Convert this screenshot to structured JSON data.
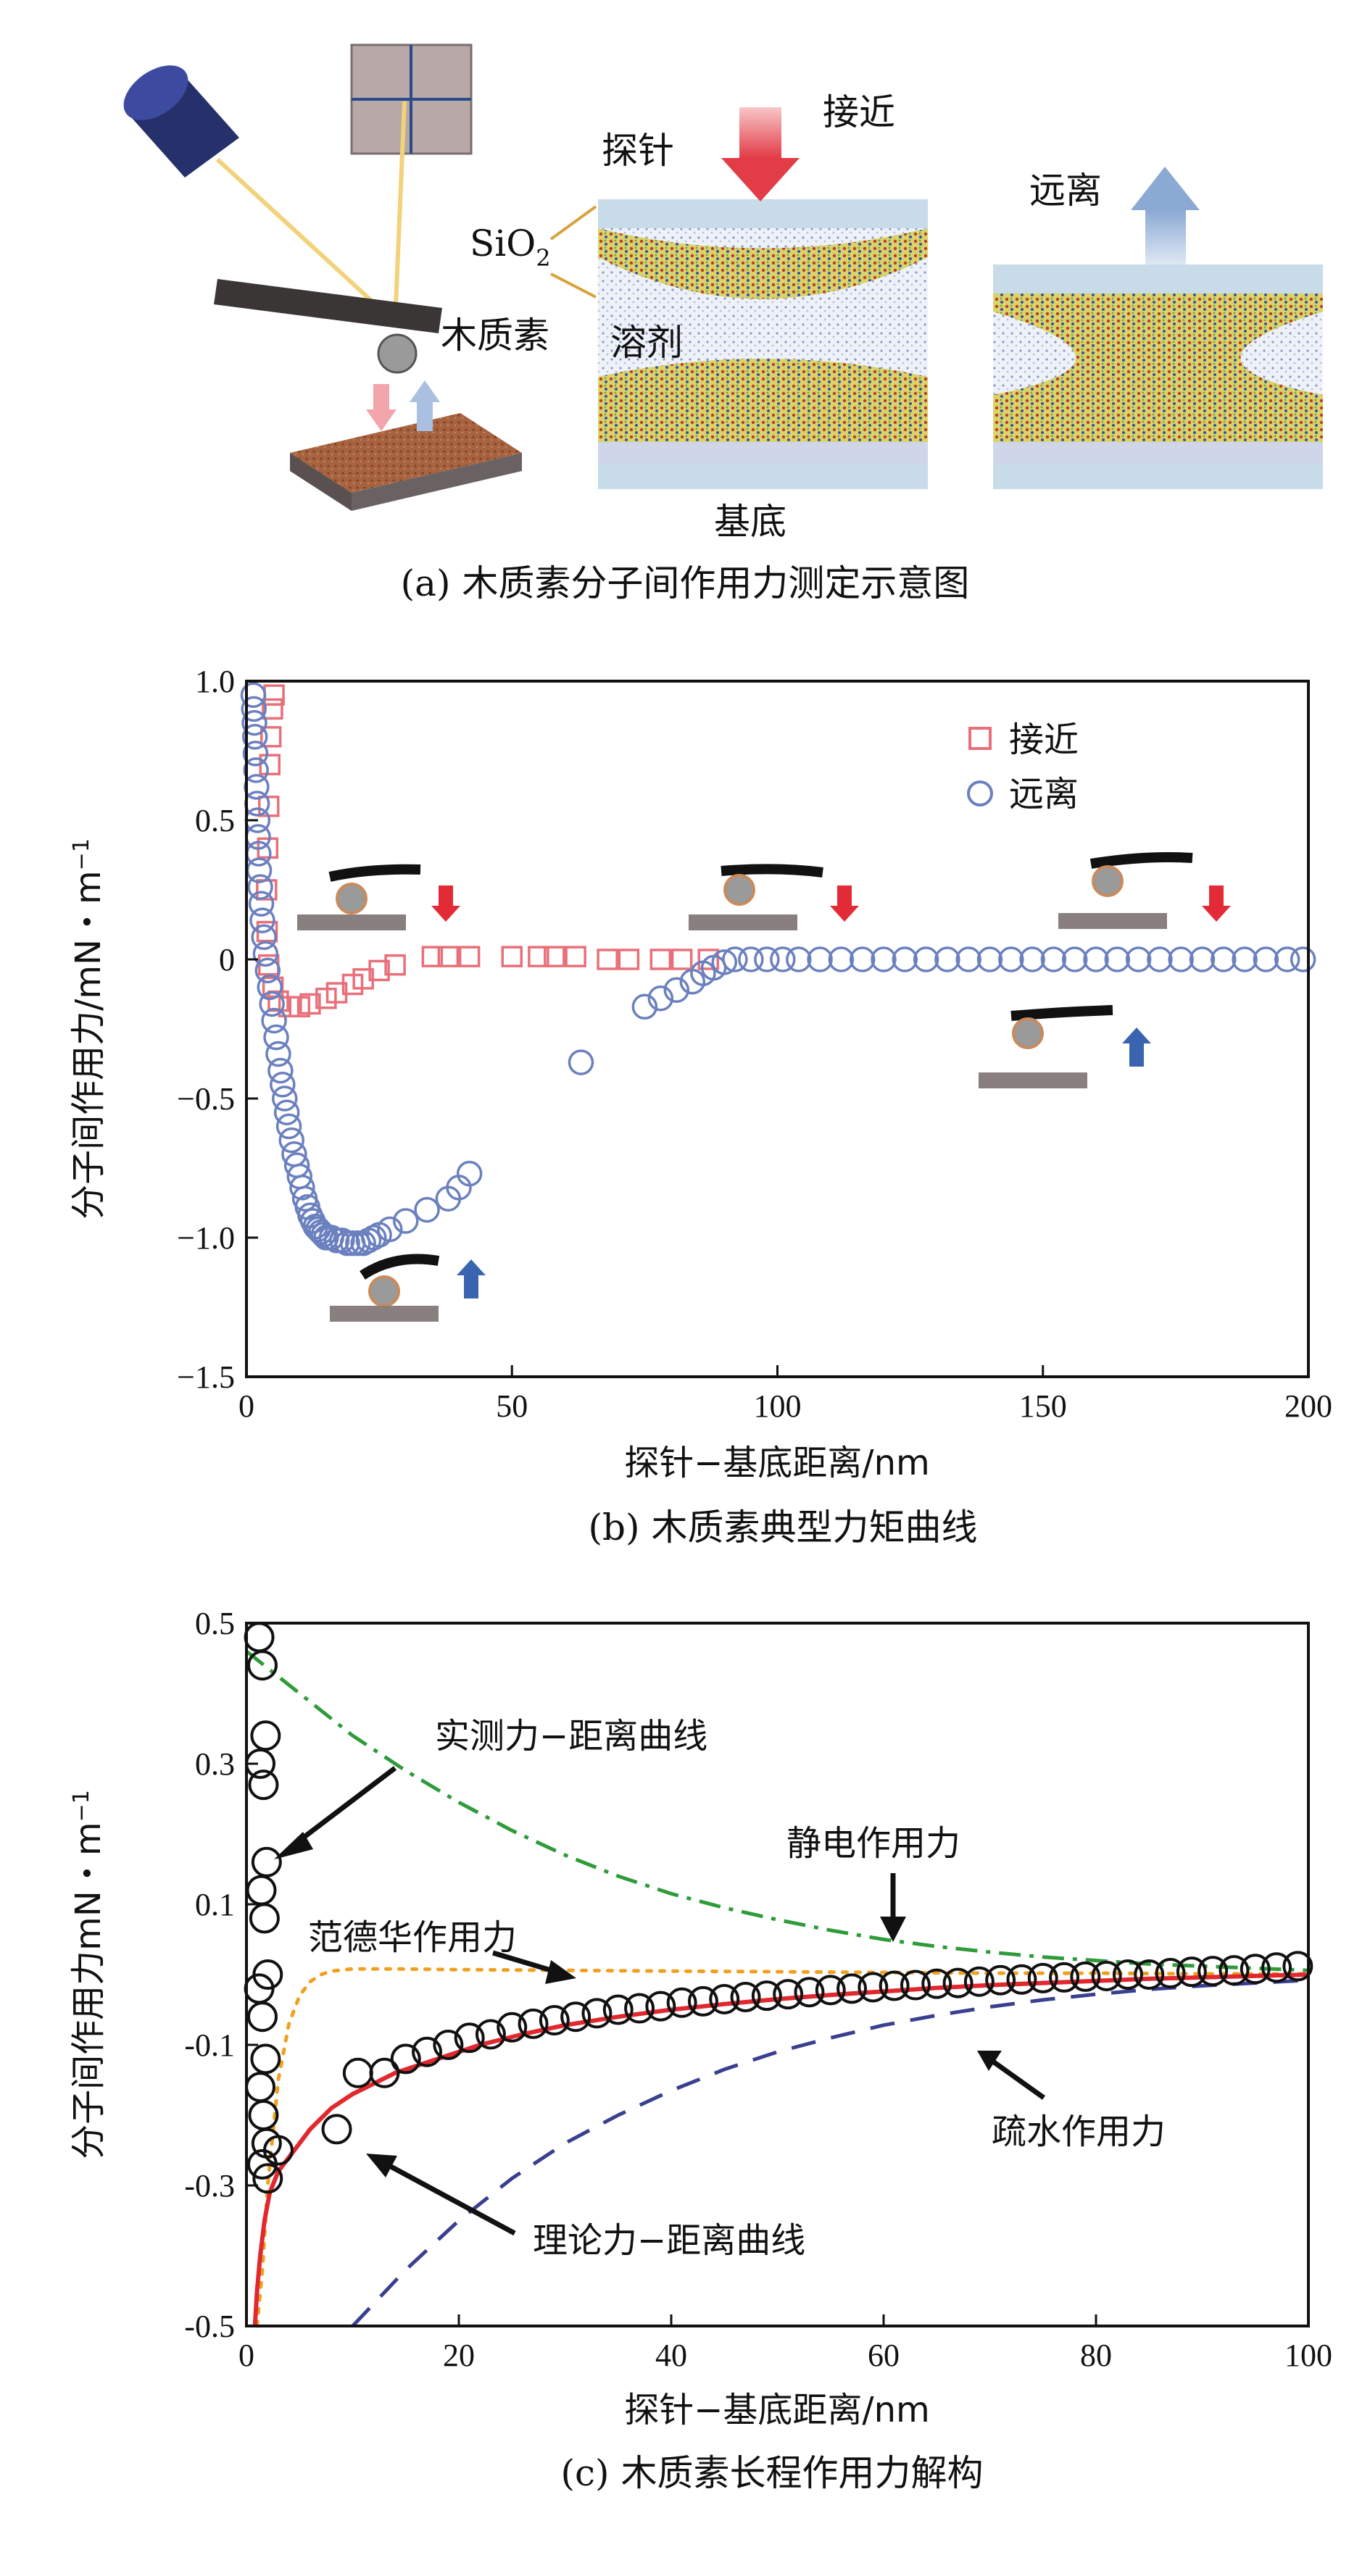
{
  "panel_a": {
    "caption": "(a) 木质素分子间作用力测定示意图",
    "labels": {
      "probe": "探针",
      "approach": "接近",
      "retract": "远离",
      "sio2": "SiO",
      "sio2_sub": "2",
      "lignin": "木质素",
      "solvent": "溶剂",
      "substrate": "基底"
    },
    "colors": {
      "approach_arrow": "#e9646c",
      "retract_arrow": "#9fb7d9",
      "laser": "#f2d27a",
      "substrate": "#9a5a3a"
    }
  },
  "chart_data": [
    {
      "type": "scatter",
      "caption": "(b) 木质素典型力矩曲线",
      "xlabel": "探针−基底距离/nm",
      "ylabel": "分子间作用力/mN・m",
      "ylabel_sup": "−1",
      "xlim": [
        0,
        200
      ],
      "ylim": [
        -1.5,
        1.0
      ],
      "xticks": [
        0,
        50,
        100,
        150,
        200
      ],
      "xtick_labels": [
        "0",
        "50",
        "100",
        "150",
        "200"
      ],
      "yticks": [
        1.0,
        0.5,
        0,
        -0.5,
        -1.0,
        -1.5
      ],
      "ytick_labels": [
        "1.0",
        "0.5",
        "0",
        "−0.5",
        "−1.0",
        "−1.5"
      ],
      "legend_position": "top-right",
      "series": [
        {
          "name": "接近",
          "marker": "square",
          "color": "#e8707a",
          "x": [
            5.2,
            4.9,
            4.6,
            4.4,
            4.2,
            4.0,
            3.8,
            3.9,
            4.2,
            5,
            6,
            8,
            10,
            12,
            15,
            17,
            20,
            22,
            25,
            28,
            35,
            38,
            42,
            50,
            55,
            58,
            62,
            68,
            72,
            78,
            82,
            87
          ],
          "y": [
            0.95,
            0.9,
            0.8,
            0.7,
            0.55,
            0.4,
            0.25,
            0.1,
            -0.02,
            -0.1,
            -0.15,
            -0.17,
            -0.17,
            -0.16,
            -0.14,
            -0.12,
            -0.09,
            -0.07,
            -0.04,
            -0.02,
            0.01,
            0.01,
            0.01,
            0.01,
            0.01,
            0.01,
            0.01,
            0.0,
            0.0,
            0.0,
            0.0,
            0.0
          ]
        },
        {
          "name": "远离",
          "marker": "circle",
          "color": "#6b80bf",
          "x": [
            1.3,
            1.4,
            1.5,
            1.6,
            1.7,
            1.8,
            1.9,
            2.0,
            2.1,
            2.2,
            2.3,
            2.4,
            2.6,
            2.8,
            3.0,
            3.3,
            3.6,
            4.0,
            4.4,
            4.8,
            5.2,
            5.6,
            6.0,
            6.4,
            6.8,
            7.2,
            7.6,
            8.0,
            8.5,
            9.0,
            9.5,
            10.0,
            10.5,
            11.0,
            11.5,
            12.0,
            12.5,
            13.0,
            13.5,
            14.0,
            14.5,
            15.0,
            16,
            17,
            18,
            19,
            20,
            21,
            22,
            23,
            24,
            25,
            27,
            30,
            34,
            38,
            40,
            42,
            63,
            75,
            78,
            81,
            84,
            86,
            88,
            90,
            92,
            95,
            98,
            101,
            104,
            108,
            112,
            116,
            120,
            124,
            128,
            132,
            136,
            140,
            144,
            148,
            152,
            156,
            160,
            164,
            168,
            172,
            176,
            180,
            184,
            188,
            192,
            196,
            199
          ],
          "y": [
            0.95,
            0.9,
            0.85,
            0.8,
            0.74,
            0.68,
            0.62,
            0.56,
            0.5,
            0.44,
            0.38,
            0.32,
            0.26,
            0.2,
            0.14,
            0.08,
            0.02,
            -0.04,
            -0.1,
            -0.16,
            -0.22,
            -0.28,
            -0.34,
            -0.4,
            -0.45,
            -0.5,
            -0.55,
            -0.6,
            -0.65,
            -0.7,
            -0.74,
            -0.78,
            -0.82,
            -0.86,
            -0.89,
            -0.92,
            -0.94,
            -0.96,
            -0.97,
            -0.98,
            -0.99,
            -1.0,
            -1.0,
            -1.01,
            -1.01,
            -1.02,
            -1.02,
            -1.02,
            -1.02,
            -1.01,
            -1.0,
            -0.99,
            -0.97,
            -0.94,
            -0.9,
            -0.86,
            -0.82,
            -0.77,
            -0.37,
            -0.17,
            -0.14,
            -0.11,
            -0.08,
            -0.05,
            -0.03,
            -0.01,
            0.0,
            0.0,
            0.0,
            0.0,
            0.0,
            0.0,
            0.0,
            0.0,
            0.0,
            0.0,
            0.0,
            0.0,
            0.0,
            0.0,
            0.0,
            0.0,
            0.0,
            0.0,
            0.0,
            0.0,
            0.0,
            0.0,
            0.0,
            0.0,
            0.0,
            0.0,
            0.0,
            0.0,
            0.0
          ]
        }
      ]
    },
    {
      "type": "line",
      "caption": "(c) 木质素长程作用力解构",
      "xlabel": "探针−基底距离/nm",
      "ylabel": "分子间作用力mN・m",
      "ylabel_sup": "−1",
      "xlim": [
        0,
        100
      ],
      "ylim": [
        -0.5,
        0.5
      ],
      "xticks": [
        0,
        20,
        40,
        60,
        80,
        100
      ],
      "xtick_labels": [
        "0",
        "20",
        "40",
        "60",
        "80",
        "100"
      ],
      "yticks": [
        0.5,
        0.3,
        0.1,
        -0.1,
        -0.3,
        -0.5
      ],
      "ytick_labels": [
        "0.5",
        "0.3",
        "0.1",
        "-0.1",
        "-0.3",
        "-0.5"
      ],
      "annotations": [
        "实测力−距离曲线",
        "静电作用力",
        "范德华作用力",
        "疏水作用力",
        "理论力−距离曲线"
      ],
      "series": [
        {
          "name": "实测力−距离曲线",
          "style": "open-circle",
          "color": "#111111",
          "x": [
            1.2,
            1.5,
            1.8,
            1.3,
            1.6,
            1.9,
            1.4,
            1.7,
            2.0,
            1.2,
            1.5,
            1.8,
            1.3,
            1.6,
            1.9,
            1.5,
            2.0,
            3.0,
            8.5,
            10.5,
            13,
            15,
            17,
            19,
            21,
            23,
            25,
            27,
            29,
            31,
            33,
            35,
            37,
            39,
            41,
            43,
            45,
            47,
            49,
            51,
            53,
            55,
            57,
            59,
            61,
            63,
            65,
            67,
            69,
            71,
            73,
            75,
            77,
            79,
            81,
            83,
            85,
            87,
            89,
            91,
            93,
            95,
            97,
            99
          ],
          "y": [
            0.48,
            0.44,
            0.34,
            0.3,
            0.27,
            0.16,
            0.12,
            0.08,
            0.0,
            -0.02,
            -0.06,
            -0.12,
            -0.16,
            -0.2,
            -0.24,
            -0.27,
            -0.29,
            -0.25,
            -0.22,
            -0.14,
            -0.14,
            -0.12,
            -0.11,
            -0.1,
            -0.09,
            -0.085,
            -0.075,
            -0.07,
            -0.065,
            -0.06,
            -0.055,
            -0.05,
            -0.048,
            -0.045,
            -0.04,
            -0.038,
            -0.035,
            -0.032,
            -0.03,
            -0.028,
            -0.025,
            -0.022,
            -0.02,
            -0.018,
            -0.016,
            -0.015,
            -0.013,
            -0.012,
            -0.01,
            -0.008,
            -0.007,
            -0.005,
            -0.004,
            -0.003,
            -0.002,
            0.0,
            0.0,
            0.002,
            0.004,
            0.005,
            0.006,
            0.008,
            0.01,
            0.012
          ]
        },
        {
          "name": "理论力−距离曲线",
          "style": "solid",
          "color": "#e0282e",
          "x": [
            0.8,
            1,
            1.3,
            1.7,
            2.2,
            3,
            4,
            5,
            6,
            8,
            10,
            14,
            18,
            22,
            26,
            30,
            35,
            40,
            45,
            50,
            55,
            60,
            65,
            70,
            75,
            80,
            85,
            90,
            95,
            100
          ],
          "y": [
            -0.5,
            -0.45,
            -0.4,
            -0.35,
            -0.31,
            -0.28,
            -0.26,
            -0.24,
            -0.22,
            -0.19,
            -0.17,
            -0.14,
            -0.12,
            -0.1,
            -0.085,
            -0.072,
            -0.06,
            -0.05,
            -0.042,
            -0.035,
            -0.029,
            -0.024,
            -0.019,
            -0.015,
            -0.012,
            -0.009,
            -0.006,
            -0.004,
            -0.002,
            0.0
          ]
        },
        {
          "name": "静电作用力",
          "style": "dash-dot",
          "color": "#2f9b3a",
          "x": [
            0,
            5,
            10,
            15,
            20,
            25,
            30,
            35,
            40,
            45,
            50,
            55,
            60,
            65,
            70,
            75,
            80,
            85,
            90,
            95,
            100
          ],
          "y": [
            0.46,
            0.4,
            0.34,
            0.29,
            0.245,
            0.205,
            0.17,
            0.14,
            0.115,
            0.095,
            0.078,
            0.063,
            0.05,
            0.04,
            0.032,
            0.025,
            0.02,
            0.015,
            0.012,
            0.009,
            0.006
          ]
        },
        {
          "name": "范德华作用力",
          "style": "dotted",
          "color": "#f0a020",
          "x": [
            1,
            1.5,
            2,
            3,
            4,
            5,
            6,
            7,
            8,
            10,
            14,
            20,
            30,
            40,
            50,
            60,
            70,
            80,
            90,
            100
          ],
          "y": [
            -0.5,
            -0.42,
            -0.3,
            -0.15,
            -0.07,
            -0.03,
            -0.01,
            0.0,
            0.005,
            0.008,
            0.008,
            0.007,
            0.006,
            0.005,
            0.004,
            0.003,
            0.002,
            0.002,
            0.001,
            0.001
          ]
        },
        {
          "name": "疏水作用力",
          "style": "dashed",
          "color": "#3a3f8f",
          "x": [
            10,
            15,
            20,
            25,
            30,
            35,
            40,
            45,
            50,
            55,
            60,
            65,
            70,
            75,
            80,
            85,
            90,
            95,
            100
          ],
          "y": [
            -0.5,
            -0.42,
            -0.35,
            -0.29,
            -0.24,
            -0.2,
            -0.165,
            -0.135,
            -0.11,
            -0.09,
            -0.072,
            -0.058,
            -0.046,
            -0.036,
            -0.028,
            -0.021,
            -0.016,
            -0.012,
            -0.008
          ]
        }
      ]
    }
  ]
}
